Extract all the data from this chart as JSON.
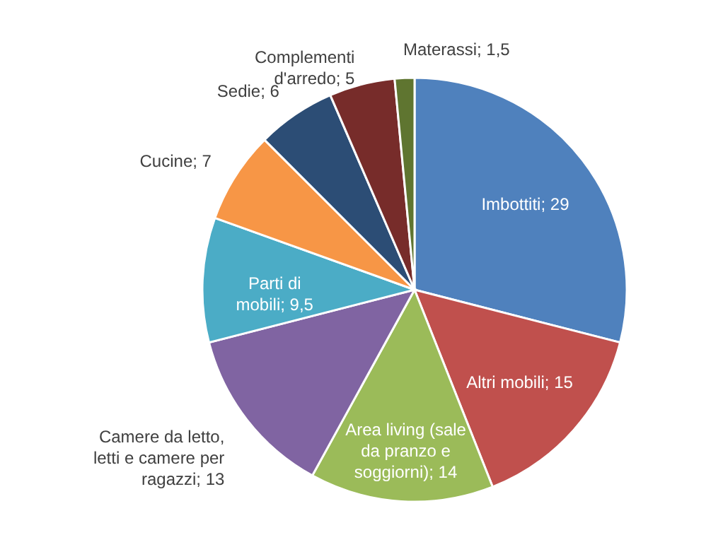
{
  "chart_data": {
    "type": "pie",
    "categories": [
      "Imbottiti",
      "Altri mobili",
      "Area living (sale da pranzo e soggiorni)",
      "Camere da letto, letti e camere per ragazzi",
      "Parti di mobili",
      "Cucine",
      "Sedie",
      "Complementi d'arredo",
      "Materassi"
    ],
    "values": [
      29,
      15,
      14,
      13,
      9.5,
      7,
      6,
      5,
      1.5
    ],
    "value_labels": [
      "29",
      "15",
      "14",
      "13",
      "9,5",
      "7",
      "6",
      "5",
      "1,5"
    ],
    "colors": [
      "#4f81bd",
      "#c0504d",
      "#9bbb59",
      "#8064a2",
      "#4bacc6",
      "#f79646",
      "#2c4d75",
      "#772c2a",
      "#5f7530"
    ]
  }
}
